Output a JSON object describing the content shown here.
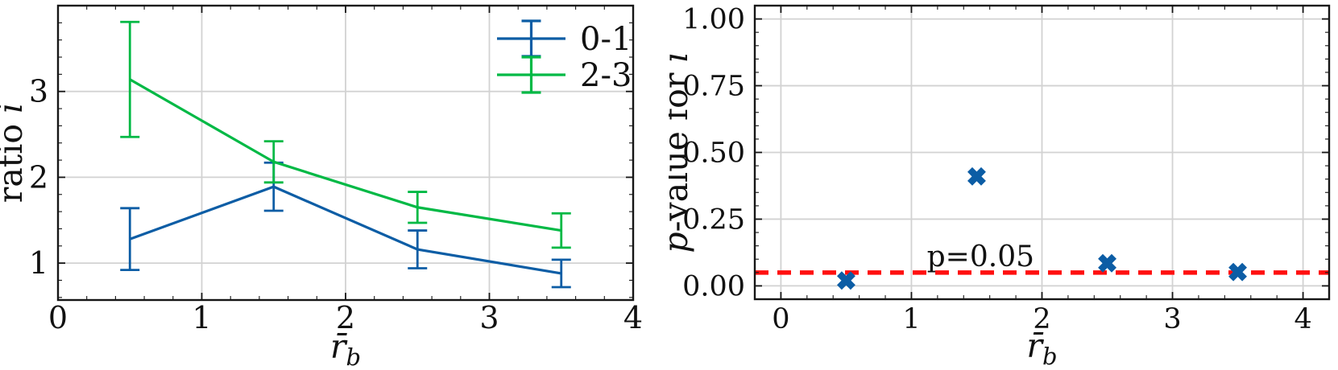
{
  "figure": {
    "background": "#ffffff",
    "text_color": "#111111",
    "grid_color": "#d2d2d2",
    "spine_color": "#161616"
  },
  "chart_data": [
    {
      "type": "line",
      "panel": "left",
      "xlabel_segments": [
        {
          "t": "r̄",
          "i": true
        },
        {
          "t": "b",
          "i": true,
          "sub": true
        }
      ],
      "ylabel_segments": [
        {
          "t": "ratio ",
          "i": false
        },
        {
          "t": "i",
          "i": true
        }
      ],
      "xlim": [
        0,
        4
      ],
      "ylim": [
        0.57,
        4.0
      ],
      "xticks": [
        0,
        1,
        2,
        3,
        4
      ],
      "xtick_labels": [
        "0",
        "1",
        "2",
        "3",
        "4"
      ],
      "yticks": [
        1,
        2,
        3
      ],
      "ytick_labels": [
        "1",
        "2",
        "3"
      ],
      "x_minor_step": 0.2,
      "y_minor_step": 0.2,
      "grid": true,
      "series": [
        {
          "name": "0-1",
          "color": "#0C5DA5",
          "x": [
            0.5,
            1.5,
            2.5,
            3.5
          ],
          "y": [
            1.28,
            1.89,
            1.16,
            0.88
          ],
          "yerr": [
            0.36,
            0.28,
            0.22,
            0.16
          ]
        },
        {
          "name": "2-3",
          "color": "#00B945",
          "x": [
            0.5,
            1.5,
            2.5,
            3.5
          ],
          "y": [
            3.14,
            2.18,
            1.65,
            1.38
          ],
          "yerr": [
            0.67,
            0.24,
            0.18,
            0.2
          ]
        }
      ],
      "legend": {
        "position": "upper right",
        "entries": [
          {
            "label": "0-1",
            "color": "#0C5DA5"
          },
          {
            "label": "2-3",
            "color": "#00B945"
          }
        ]
      }
    },
    {
      "type": "scatter",
      "panel": "right",
      "xlabel_segments": [
        {
          "t": "r̄",
          "i": true
        },
        {
          "t": "b",
          "i": true,
          "sub": true
        }
      ],
      "ylabel_segments": [
        {
          "t": "p",
          "i": true
        },
        {
          "t": "-value for ",
          "i": false
        },
        {
          "t": "i",
          "i": true
        }
      ],
      "xlim": [
        -0.2,
        4.2
      ],
      "ylim": [
        -0.05,
        1.05
      ],
      "xticks": [
        0,
        1,
        2,
        3,
        4
      ],
      "xtick_labels": [
        "0",
        "1",
        "2",
        "3",
        "4"
      ],
      "yticks": [
        0,
        0.25,
        0.5,
        0.75,
        1
      ],
      "ytick_labels": [
        "0.00",
        "0.25",
        "0.50",
        "0.75",
        "1.00"
      ],
      "x_minor_step": 0.2,
      "y_minor_step": 0.05,
      "grid": true,
      "marker": "X",
      "marker_color": "#0C5DA5",
      "points": {
        "x": [
          0.5,
          1.5,
          2.5,
          3.5
        ],
        "y": [
          0.02,
          0.41,
          0.085,
          0.052
        ]
      },
      "hline": {
        "y": 0.05,
        "color": "#ff0f0f",
        "style": "dashed"
      },
      "annotation": {
        "text": "p=0.05",
        "x": 1.53,
        "y": 0.05
      }
    }
  ]
}
